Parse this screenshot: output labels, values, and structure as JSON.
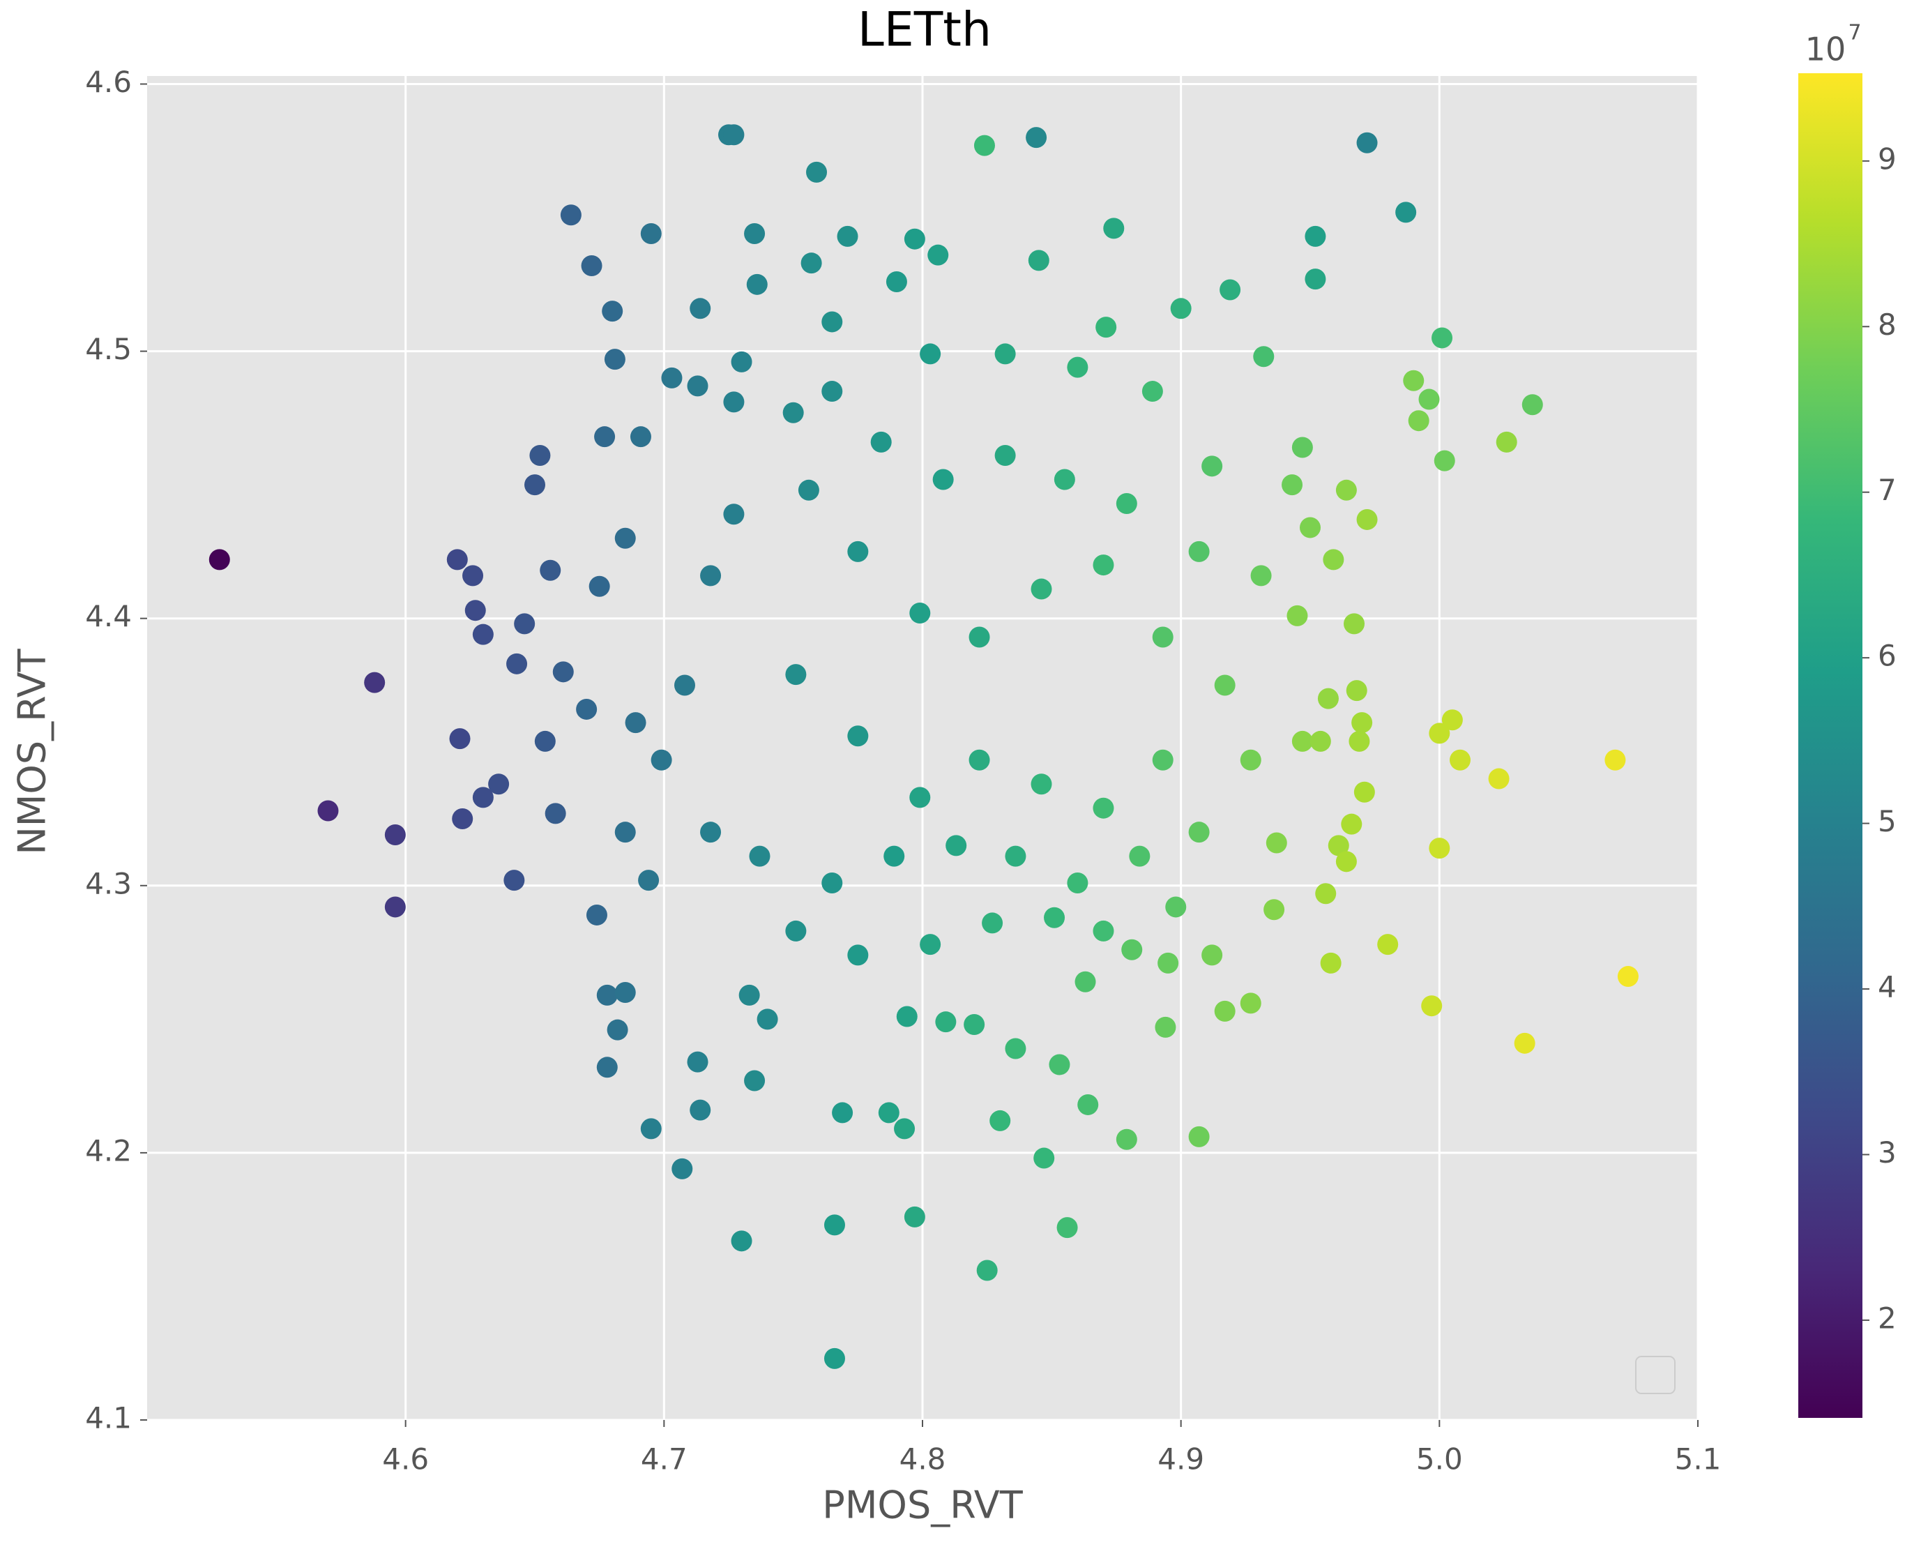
{
  "chart_data": {
    "type": "scatter",
    "title": "LETth",
    "x_label": "PMOS_RVT",
    "y_label": "NMOS_RVT",
    "xlim": [
      4.5,
      5.1
    ],
    "ylim": [
      4.1,
      4.603
    ],
    "xticks": [
      4.6,
      4.7,
      4.8,
      4.9,
      {
        "value": 5,
        "label": "5.0"
      },
      5.1
    ],
    "yticks": [
      4.1,
      4.2,
      4.3,
      4.4,
      4.5,
      4.6
    ],
    "grid": true,
    "colormap": "viridis",
    "clim": [
      1.41,
      9.53
    ],
    "colorbar_ticks": [
      2,
      3,
      4,
      5,
      6,
      7,
      8,
      9
    ],
    "colorbar_offset": {
      "base": "10",
      "exponent": "7"
    },
    "x": [
      4.528,
      4.57,
      4.588,
      4.596,
      4.596,
      4.62,
      4.621,
      4.622,
      4.626,
      4.627,
      4.63,
      4.63,
      4.636,
      4.642,
      4.643,
      4.646,
      4.65,
      4.652,
      4.654,
      4.656,
      4.658,
      4.661,
      4.664,
      4.672,
      4.674,
      4.677,
      4.678,
      4.678,
      4.68,
      4.681,
      4.682,
      4.685,
      4.691,
      4.695,
      4.695,
      4.703,
      4.707,
      4.713,
      4.714,
      4.713,
      4.714,
      4.725,
      4.727,
      4.727,
      4.73,
      4.73,
      4.735,
      4.735,
      4.736,
      4.733,
      4.74,
      4.75,
      4.757,
      4.759,
      4.766,
      4.766,
      4.769,
      4.771,
      4.765,
      4.79,
      4.797,
      4.806,
      4.797,
      4.793,
      4.787,
      4.794,
      4.825,
      4.824,
      4.844,
      4.845,
      4.874,
      4.871,
      4.847,
      4.856,
      4.864,
      4.879,
      4.907,
      4.919,
      4.9,
      4.932,
      4.952,
      4.952,
      4.972,
      4.987,
      5.001,
      4.99,
      4.996,
      4.992,
      5.036,
      5.026,
      5.002,
      4.972,
      4.964,
      4.959,
      4.967,
      4.957,
      4.968,
      4.97,
      4.969,
      4.971,
      4.966,
      4.961,
      4.964,
      4.956,
      4.958,
      4.98,
      4.997,
      5.0,
      5.005,
      5.008,
      5.0,
      5.023,
      5.068,
      5.073,
      5.033,
      4.947,
      4.943,
      4.95,
      4.945,
      4.947,
      4.954,
      4.937,
      4.936,
      4.927,
      4.917,
      4.912,
      4.895,
      4.894,
      4.881,
      4.863,
      4.853,
      4.836,
      4.83,
      4.809,
      4.82,
      4.827,
      4.756,
      4.775,
      4.799,
      4.822,
      4.846,
      4.87,
      4.893,
      4.917,
      4.751,
      4.775,
      4.799,
      4.822,
      4.846,
      4.87,
      4.893,
      4.727,
      4.718,
      4.708,
      4.699,
      4.737,
      4.765,
      4.789,
      4.813,
      4.836,
      4.86,
      4.884,
      4.907,
      4.927,
      4.931,
      4.907,
      4.879,
      4.855,
      4.832,
      4.808,
      4.784,
      4.765,
      4.803,
      4.832,
      4.86,
      4.889,
      4.912,
      4.685,
      4.675,
      4.67,
      4.689,
      4.685,
      4.694,
      4.718,
      4.751,
      4.775,
      4.803,
      4.851,
      4.87,
      4.898
    ],
    "values": [
      4.422,
      4.328,
      4.376,
      4.319,
      4.292,
      4.422,
      4.355,
      4.325,
      4.416,
      4.403,
      4.394,
      4.333,
      4.338,
      4.302,
      4.383,
      4.398,
      4.45,
      4.461,
      4.354,
      4.418,
      4.327,
      4.38,
      4.551,
      4.532,
      4.289,
      4.468,
      4.232,
      4.259,
      4.515,
      4.497,
      4.246,
      4.26,
      4.468,
      4.544,
      4.209,
      4.49,
      4.194,
      4.487,
      4.516,
      4.234,
      4.216,
      4.581,
      4.581,
      4.481,
      4.496,
      4.167,
      4.544,
      4.227,
      4.525,
      4.259,
      4.25,
      4.477,
      4.533,
      4.567,
      4.123,
      4.173,
      4.215,
      4.543,
      4.511,
      4.526,
      4.542,
      4.536,
      4.176,
      4.209,
      4.215,
      4.251,
      4.156,
      4.577,
      4.58,
      4.534,
      4.546,
      4.509,
      4.198,
      4.172,
      4.218,
      4.205,
      4.206,
      4.523,
      4.516,
      4.498,
      4.543,
      4.527,
      4.578,
      4.552,
      4.505,
      4.489,
      4.482,
      4.474,
      4.48,
      4.466,
      4.459,
      4.437,
      4.448,
      4.422,
      4.398,
      4.37,
      4.373,
      4.361,
      4.354,
      4.335,
      4.323,
      4.315,
      4.309,
      4.297,
      4.271,
      4.278,
      4.255,
      4.357,
      4.362,
      4.347,
      4.314,
      4.34,
      4.347,
      4.266,
      4.241,
      4.464,
      4.45,
      4.434,
      4.401,
      4.354,
      4.354,
      4.316,
      4.291,
      4.256,
      4.253,
      4.274,
      4.271,
      4.247,
      4.276,
      4.264,
      4.233,
      4.239,
      4.212,
      4.249,
      4.248,
      4.286,
      4.448,
      4.425,
      4.402,
      4.393,
      4.411,
      4.42,
      4.393,
      4.375,
      4.379,
      4.356,
      4.333,
      4.347,
      4.338,
      4.329,
      4.347,
      4.439,
      4.416,
      4.375,
      4.347,
      4.311,
      4.301,
      4.311,
      4.315,
      4.311,
      4.301,
      4.311,
      4.32,
      4.347,
      4.416,
      4.425,
      4.443,
      4.452,
      4.461,
      4.452,
      4.466,
      4.485,
      4.499,
      4.499,
      4.494,
      4.485,
      4.457,
      4.43,
      4.412,
      4.366,
      4.361,
      4.32,
      4.302,
      4.32,
      4.283,
      4.274,
      4.278,
      4.288,
      4.283,
      4.292
    ],
    "color_values": [
      1.45,
      2.4,
      2.7,
      2.84,
      2.8,
      3.18,
      3.19,
      3.21,
      3.26,
      3.28,
      3.32,
      3.32,
      3.4,
      3.49,
      3.5,
      3.54,
      3.6,
      3.64,
      3.68,
      3.72,
      3.76,
      3.82,
      3.9,
      4.0,
      4.08,
      4.14,
      4.4,
      4.4,
      4.2,
      4.22,
      4.45,
      4.5,
      4.42,
      4.5,
      4.9,
      4.64,
      5.0,
      4.78,
      4.8,
      5.0,
      5.0,
      4.9,
      4.9,
      4.98,
      5.02,
      5.6,
      5.09,
      5.3,
      5.1,
      5.2,
      5.25,
      5.3,
      5.4,
      5.3,
      5.9,
      5.9,
      5.8,
      5.5,
      5.51,
      5.8,
      5.9,
      6.0,
      6.3,
      6.2,
      6.1,
      6.1,
      6.6,
      6.9,
      5.2,
      6.3,
      6.3,
      6.8,
      6.8,
      7.0,
      7.1,
      7.4,
      7.7,
      6.5,
      6.6,
      7.1,
      6.0,
      6.2,
      5.0,
      5.6,
      7.0,
      7.9,
      7.7,
      7.9,
      7.5,
      8.2,
      7.7,
      8.3,
      8.1,
      8.1,
      8.2,
      8.2,
      8.3,
      8.4,
      8.4,
      8.5,
      8.5,
      8.4,
      8.5,
      8.4,
      8.5,
      8.7,
      8.9,
      8.8,
      8.8,
      8.9,
      8.9,
      9.1,
      9.3,
      9.4,
      9.2,
      7.5,
      7.7,
      7.9,
      8.0,
      8.1,
      8.2,
      8.0,
      8.0,
      8.0,
      7.9,
      7.8,
      7.6,
      7.6,
      7.4,
      7.2,
      7.1,
      6.9,
      6.8,
      6.5,
      6.6,
      6.6,
      5.3,
      5.6,
      6.0,
      6.3,
      6.6,
      6.9,
      7.3,
      7.6,
      5.4,
      5.7,
      6.1,
      6.4,
      6.7,
      7.0,
      7.3,
      4.9,
      4.8,
      4.7,
      4.6,
      5.2,
      5.6,
      5.9,
      6.2,
      6.5,
      6.9,
      7.2,
      7.5,
      7.8,
      7.6,
      7.3,
      6.9,
      6.6,
      6.3,
      6.0,
      5.7,
      5.4,
      5.9,
      6.3,
      6.7,
      7.0,
      7.3,
      4.3,
      4.1,
      4.1,
      4.4,
      4.4,
      4.6,
      4.9,
      5.5,
      5.8,
      6.2,
      6.8,
      7.0,
      7.4
    ]
  }
}
